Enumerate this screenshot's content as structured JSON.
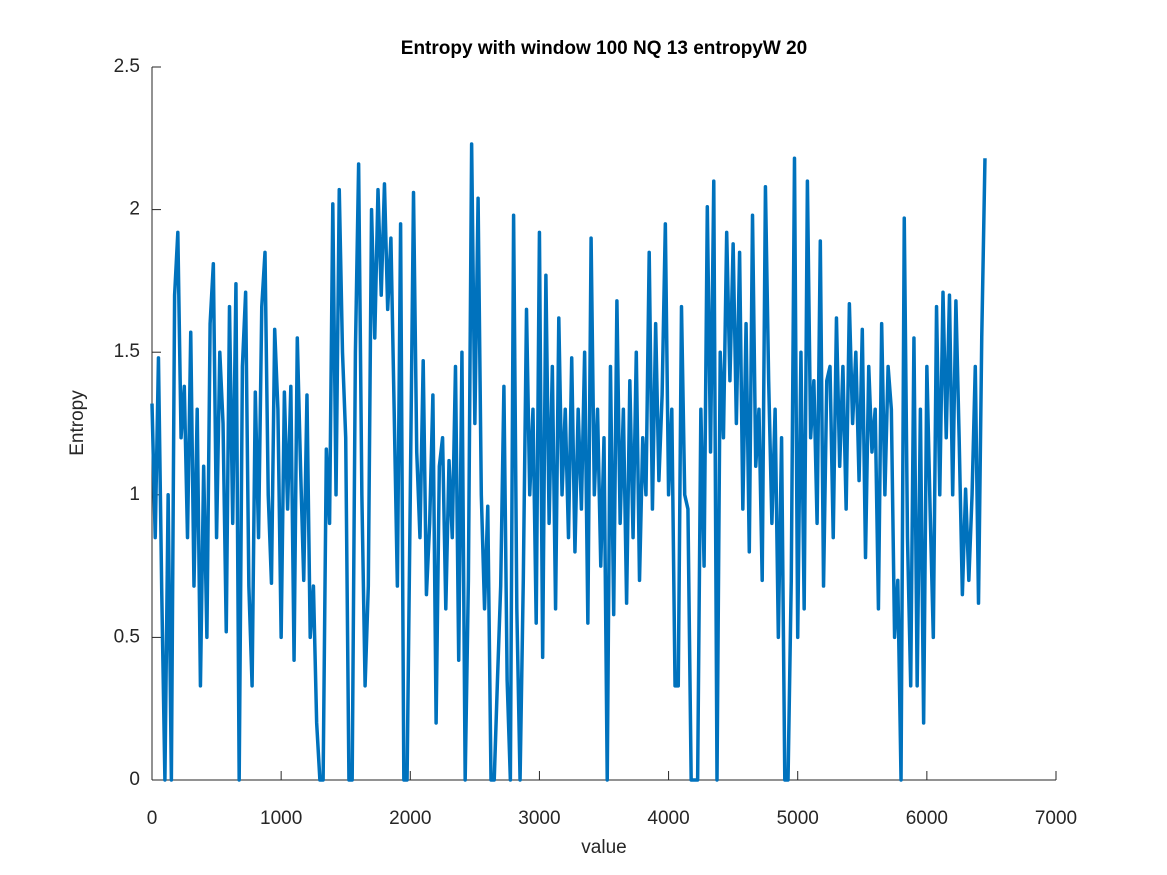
{
  "chart_data": {
    "type": "line",
    "title": "Entropy with window 100  NQ 13  entropyW 20",
    "x_label": "value",
    "y_label": "Entropy",
    "color": "#0072BD",
    "xlim": [
      0,
      7000
    ],
    "xticks": [
      0,
      1000,
      2000,
      3000,
      4000,
      5000,
      6000,
      7000
    ],
    "ylim": [
      0,
      2.5
    ],
    "yticks": [
      0,
      0.5,
      1,
      1.5,
      2,
      2.5
    ],
    "x": [
      0,
      25,
      50,
      75,
      100,
      125,
      150,
      175,
      200,
      225,
      250,
      275,
      300,
      325,
      350,
      375,
      400,
      425,
      450,
      475,
      500,
      525,
      550,
      575,
      600,
      625,
      650,
      675,
      700,
      725,
      750,
      775,
      800,
      825,
      850,
      875,
      900,
      925,
      950,
      975,
      1000,
      1025,
      1050,
      1075,
      1100,
      1125,
      1150,
      1175,
      1200,
      1225,
      1250,
      1275,
      1300,
      1325,
      1350,
      1375,
      1400,
      1425,
      1450,
      1475,
      1500,
      1525,
      1550,
      1575,
      1600,
      1625,
      1650,
      1675,
      1700,
      1725,
      1750,
      1775,
      1800,
      1825,
      1850,
      1875,
      1900,
      1925,
      1950,
      1975,
      2000,
      2025,
      2050,
      2075,
      2100,
      2125,
      2150,
      2175,
      2200,
      2225,
      2250,
      2275,
      2300,
      2325,
      2350,
      2375,
      2400,
      2425,
      2450,
      2475,
      2500,
      2525,
      2550,
      2575,
      2600,
      2625,
      2650,
      2675,
      2700,
      2725,
      2750,
      2775,
      2800,
      2825,
      2850,
      2875,
      2900,
      2925,
      2950,
      2975,
      3000,
      3025,
      3050,
      3075,
      3100,
      3125,
      3150,
      3175,
      3200,
      3225,
      3250,
      3275,
      3300,
      3325,
      3350,
      3375,
      3400,
      3425,
      3450,
      3475,
      3500,
      3525,
      3550,
      3575,
      3600,
      3625,
      3650,
      3675,
      3700,
      3725,
      3750,
      3775,
      3800,
      3825,
      3850,
      3875,
      3900,
      3925,
      3950,
      3975,
      4000,
      4025,
      4050,
      4075,
      4100,
      4125,
      4150,
      4175,
      4200,
      4225,
      4250,
      4275,
      4300,
      4325,
      4350,
      4375,
      4400,
      4425,
      4450,
      4475,
      4500,
      4525,
      4550,
      4575,
      4600,
      4625,
      4650,
      4675,
      4700,
      4725,
      4750,
      4775,
      4800,
      4825,
      4850,
      4875,
      4900,
      4925,
      4950,
      4975,
      5000,
      5025,
      5050,
      5075,
      5100,
      5125,
      5150,
      5175,
      5200,
      5225,
      5250,
      5275,
      5300,
      5325,
      5350,
      5375,
      5400,
      5425,
      5450,
      5475,
      5500,
      5525,
      5550,
      5575,
      5600,
      5625,
      5650,
      5675,
      5700,
      5725,
      5750,
      5775,
      5800,
      5825,
      5850,
      5875,
      5900,
      5925,
      5950,
      5975,
      6000,
      6025,
      6050,
      6075,
      6100,
      6125,
      6150,
      6175,
      6200,
      6225,
      6250,
      6275,
      6300,
      6325,
      6350,
      6375,
      6400,
      6425,
      6450
    ],
    "values": [
      1.32,
      0.85,
      1.48,
      0.67,
      0,
      1.0,
      0,
      1.7,
      1.92,
      1.2,
      1.38,
      0.85,
      1.57,
      0.68,
      1.3,
      0.33,
      1.1,
      0.5,
      1.6,
      1.81,
      0.85,
      1.5,
      1.25,
      0.52,
      1.66,
      0.9,
      1.74,
      0,
      1.45,
      1.71,
      0.68,
      0.33,
      1.36,
      0.85,
      1.66,
      1.85,
      1.0,
      0.69,
      1.58,
      1.3,
      0.5,
      1.36,
      0.95,
      1.38,
      0.42,
      1.55,
      1.1,
      0.7,
      1.35,
      0.5,
      0.68,
      0.2,
      0,
      0,
      1.16,
      0.9,
      2.02,
      1.0,
      2.07,
      1.5,
      1.2,
      0,
      0,
      1.5,
      2.16,
      1.0,
      0.33,
      0.68,
      2.0,
      1.55,
      2.07,
      1.7,
      2.09,
      1.65,
      1.9,
      1.3,
      0.68,
      1.95,
      0,
      0,
      1.0,
      2.06,
      1.15,
      0.85,
      1.47,
      0.65,
      0.9,
      1.35,
      0.2,
      1.1,
      1.2,
      0.6,
      1.12,
      0.85,
      1.45,
      0.42,
      1.5,
      0,
      0.7,
      2.23,
      1.25,
      2.04,
      1.0,
      0.6,
      0.96,
      0,
      0,
      0.35,
      0.68,
      1.38,
      0.35,
      0,
      1.98,
      0.6,
      0,
      0.7,
      1.65,
      1.0,
      1.3,
      0.55,
      1.92,
      0.43,
      1.77,
      0.9,
      1.45,
      0.6,
      1.62,
      1.0,
      1.3,
      0.85,
      1.48,
      0.8,
      1.3,
      0.95,
      1.5,
      0.55,
      1.9,
      1.0,
      1.3,
      0.75,
      1.2,
      0,
      1.45,
      0.58,
      1.68,
      0.9,
      1.3,
      0.62,
      1.4,
      0.85,
      1.5,
      0.7,
      1.2,
      1.0,
      1.85,
      0.95,
      1.6,
      1.05,
      1.35,
      1.95,
      1.0,
      1.3,
      0.33,
      0.33,
      1.66,
      1.0,
      0.95,
      0,
      0,
      0,
      1.3,
      0.75,
      2.01,
      1.15,
      2.1,
      0,
      1.5,
      1.2,
      1.92,
      1.4,
      1.88,
      1.25,
      1.85,
      0.95,
      1.6,
      0.8,
      1.98,
      1.1,
      1.3,
      0.7,
      2.08,
      1.4,
      0.9,
      1.3,
      0.5,
      1.2,
      0,
      0,
      0.7,
      2.18,
      0.5,
      1.5,
      0.6,
      2.1,
      1.2,
      1.4,
      0.9,
      1.89,
      0.68,
      1.4,
      1.45,
      0.85,
      1.62,
      1.1,
      1.45,
      0.95,
      1.67,
      1.25,
      1.5,
      1.05,
      1.58,
      0.78,
      1.45,
      1.15,
      1.3,
      0.6,
      1.6,
      1.0,
      1.45,
      1.3,
      0.5,
      0.7,
      0,
      1.97,
      0.85,
      0.33,
      1.55,
      0.33,
      1.3,
      0.2,
      1.45,
      0.95,
      0.5,
      1.66,
      1.0,
      1.71,
      1.2,
      1.7,
      1.0,
      1.68,
      1.2,
      0.65,
      1.02,
      0.7,
      1.0,
      1.45,
      0.62,
      1.55,
      2.18
    ]
  }
}
